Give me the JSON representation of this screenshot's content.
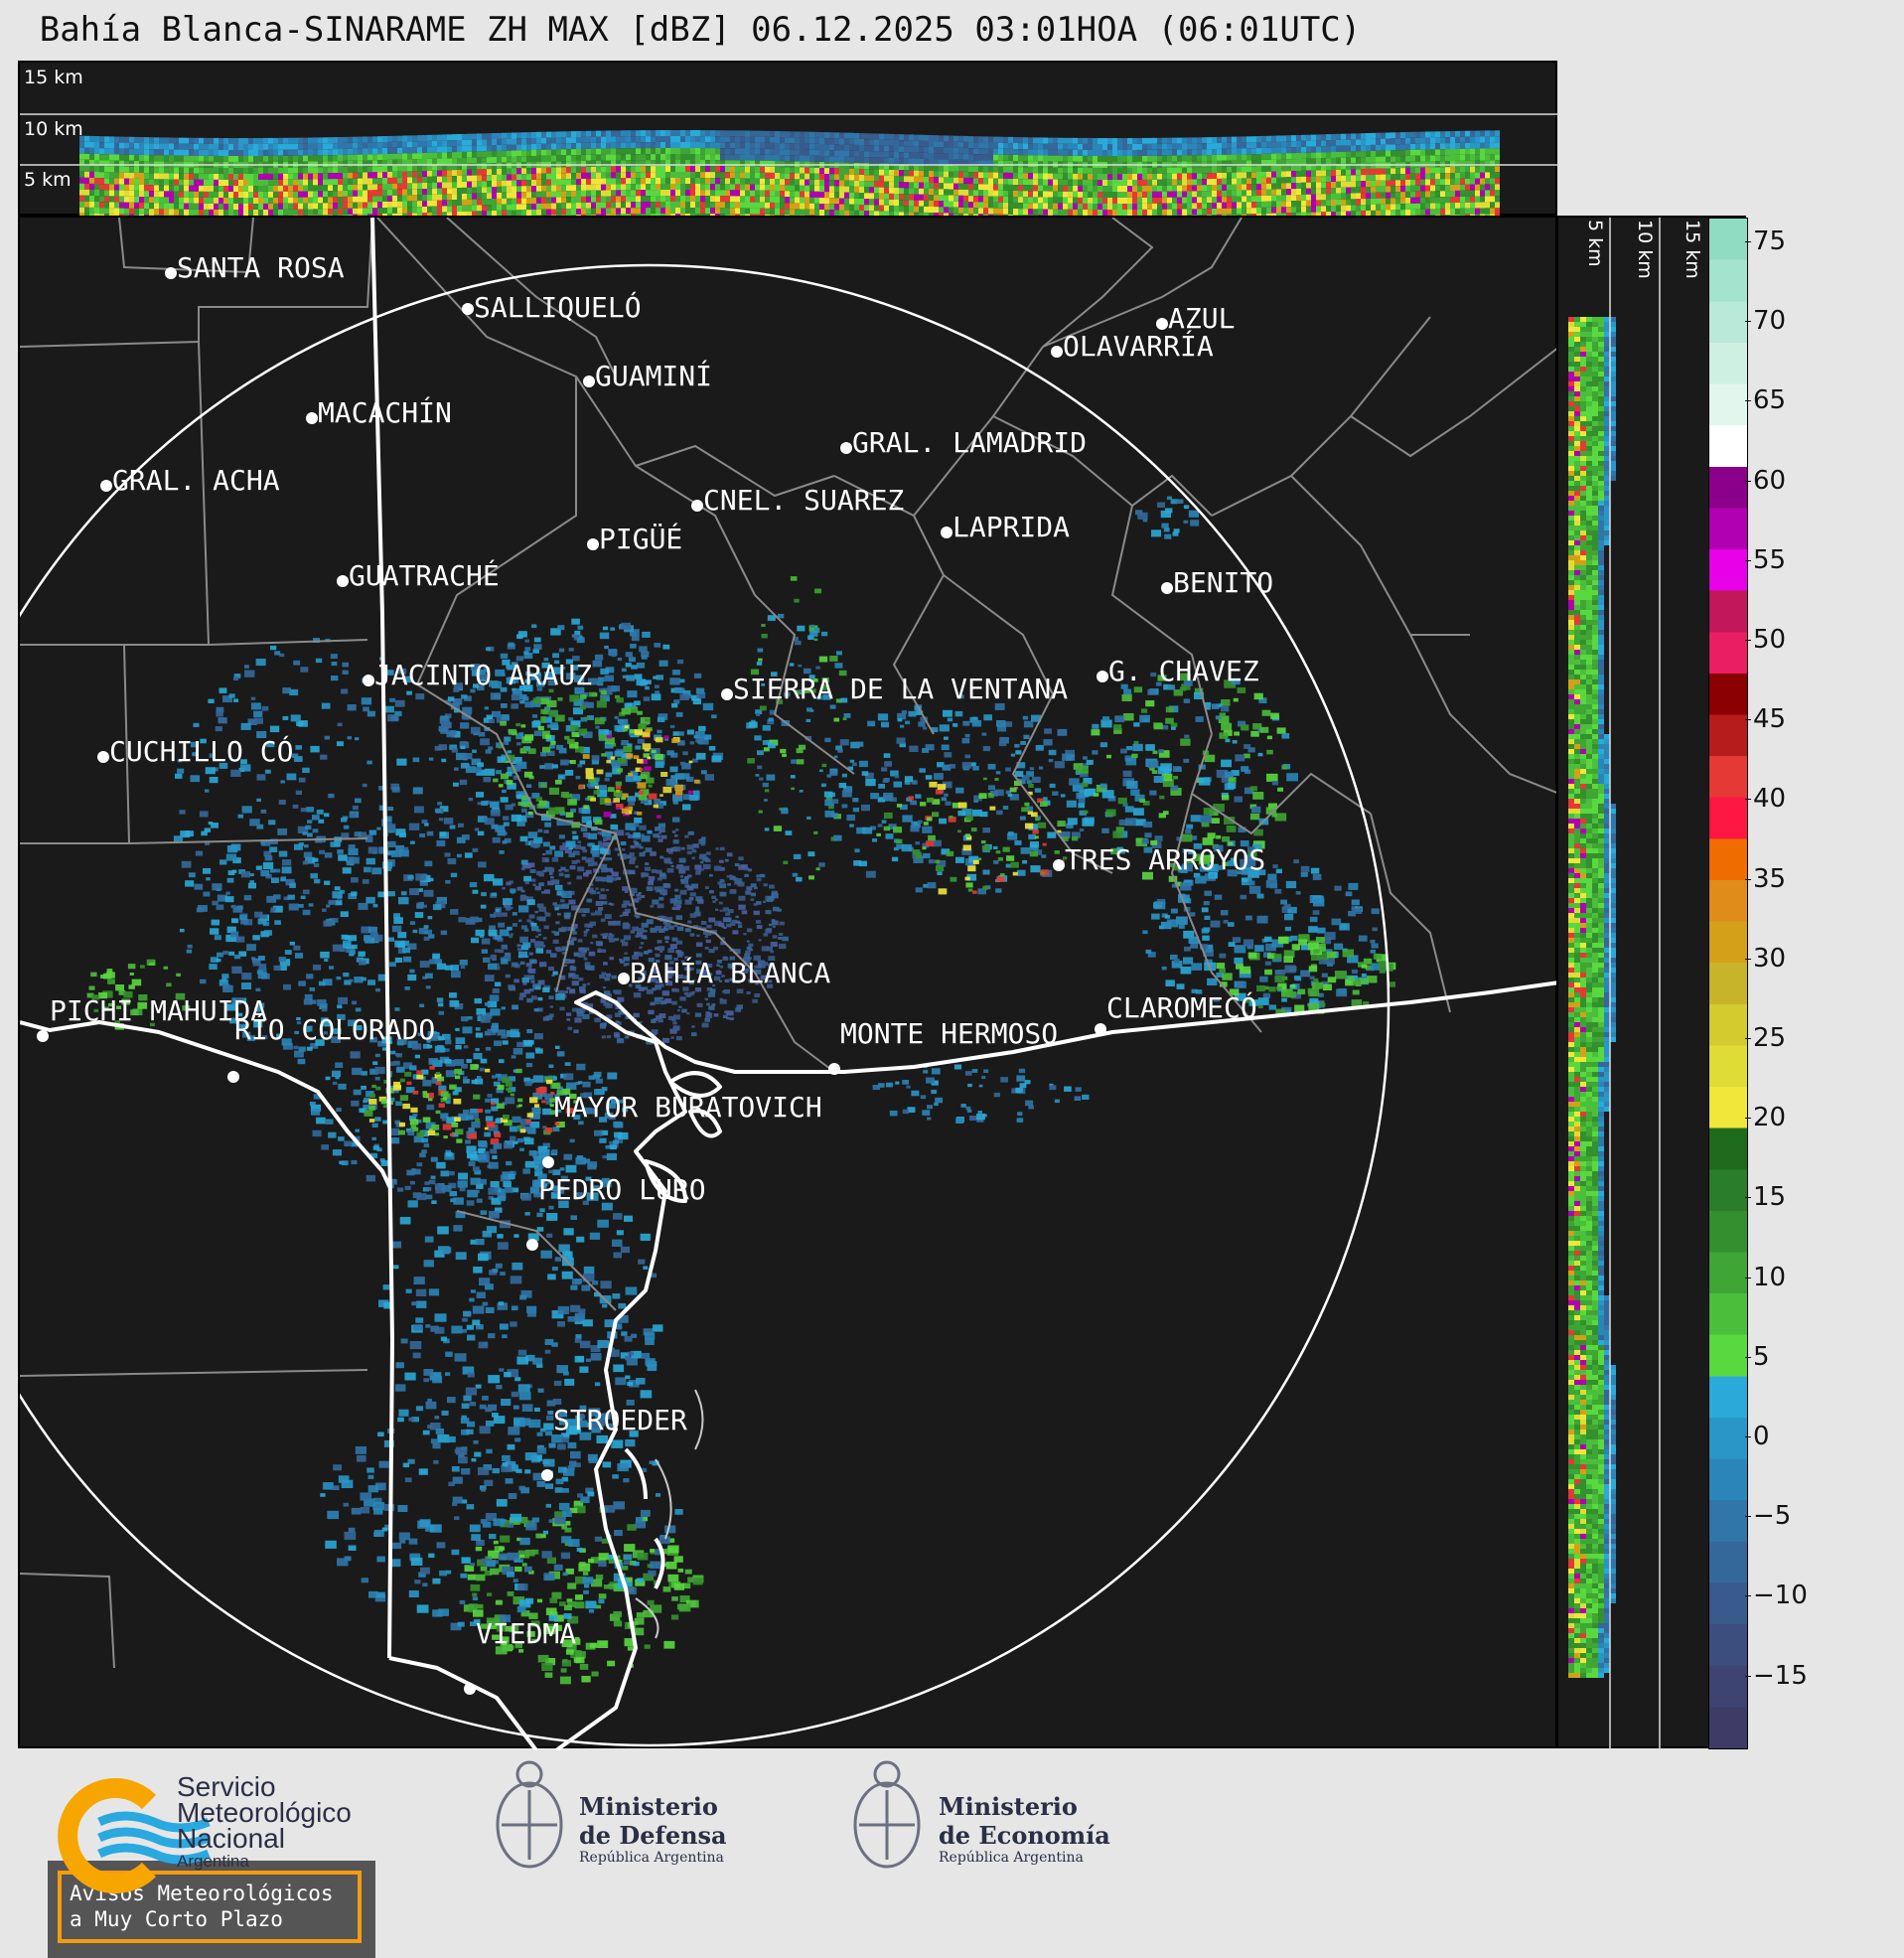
{
  "title": "Bahía Blanca-SINARAME ZH MAX [dBZ] 06.12.2025 03:01HOA (06:01UTC)",
  "altitudes": [
    "15 km",
    "10 km",
    "5 km"
  ],
  "side_altitudes": [
    "5 km",
    "10 km",
    "15 km"
  ],
  "colorbar": {
    "ticks": [
      "75",
      "70",
      "65",
      "60",
      "55",
      "50",
      "45",
      "40",
      "35",
      "30",
      "25",
      "20",
      "15",
      "10",
      "5",
      "0",
      "−5",
      "−10",
      "−15"
    ],
    "colors": [
      "#8fdcc3",
      "#a4e3cd",
      "#b9e9d8",
      "#cdf0e2",
      "#e3f6ee",
      "#ffffff",
      "#8b008b",
      "#b000b0",
      "#e800e8",
      "#c2185b",
      "#e91e63",
      "#8b0000",
      "#b71c1c",
      "#e53935",
      "#ff1744",
      "#ef6c00",
      "#e08c1a",
      "#d4a017",
      "#c8b42a",
      "#d4cc2e",
      "#e0dc36",
      "#f0e73a",
      "#1e6b1e",
      "#2a7d2a",
      "#34902e",
      "#3fa535",
      "#4bbf3b",
      "#5ad83f",
      "#2aaad8",
      "#2a96c8",
      "#2a86b8",
      "#3076a8",
      "#34689a",
      "#385a8c",
      "#3c4e7e",
      "#3e4472",
      "#3e3c66"
    ]
  },
  "cities": [
    {
      "name": "SANTA ROSA"
    },
    {
      "name": "SALLIQUELÓ"
    },
    {
      "name": "AZUL"
    },
    {
      "name": "OLAVARRÍA"
    },
    {
      "name": "GUAMINÍ"
    },
    {
      "name": "MACACHÍN"
    },
    {
      "name": "GRAL. LAMADRID"
    },
    {
      "name": "GRAL. ACHA"
    },
    {
      "name": "CNEL. SUAREZ"
    },
    {
      "name": "LAPRIDA"
    },
    {
      "name": "PIGÜÉ"
    },
    {
      "name": "GUATRACHÉ"
    },
    {
      "name": "BENITO"
    },
    {
      "name": "G. CHAVEZ"
    },
    {
      "name": "JACINTO ARAUZ"
    },
    {
      "name": "SIERRA DE LA VENTANA"
    },
    {
      "name": "CUCHILLO CÓ"
    },
    {
      "name": "TRES ARROYOS"
    },
    {
      "name": "BAHÍA BLANCA"
    },
    {
      "name": "PICHI MAHUIDA"
    },
    {
      "name": "CLAROMECÓ"
    },
    {
      "name": "MONTE HERMOSO"
    },
    {
      "name": "RÍO COLORADO"
    },
    {
      "name": "MAYOR BURATOVICH"
    },
    {
      "name": "PEDRO LURO"
    },
    {
      "name": "STROEDER"
    },
    {
      "name": "VIEDMA"
    }
  ],
  "warning": {
    "line1": "Avisos Meteorológicos",
    "line2": "a Muy Corto Plazo"
  },
  "logos": {
    "smn": {
      "l1": "Servicio",
      "l2": "Meteorológico",
      "l3": "Nacional",
      "l4": "Argentina"
    },
    "defensa": {
      "l1": "Ministerio",
      "l2": "de Defensa",
      "l3": "República Argentina"
    },
    "economia": {
      "l1": "Ministerio",
      "l2": "de Economía",
      "l3": "República Argentina"
    }
  }
}
